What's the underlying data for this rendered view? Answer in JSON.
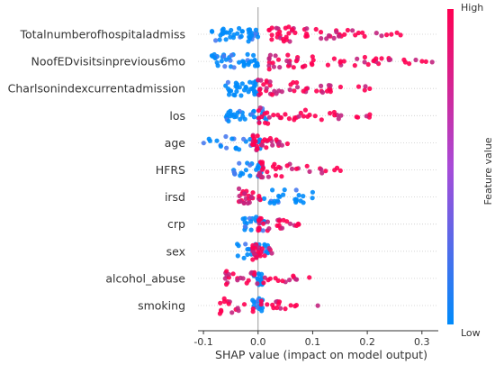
{
  "chart_data": {
    "type": "scatter",
    "subtype": "shap-beeswarm",
    "xlabel": "SHAP value (impact on model output)",
    "xlim": [
      -0.11,
      0.33
    ],
    "xticks": [
      -0.1,
      0.0,
      0.1,
      0.2,
      0.3
    ],
    "xtick_labels": [
      "-0.1",
      "0.0",
      "0.1",
      "0.2",
      "0.3"
    ],
    "zero_line": true,
    "colorbar": {
      "label": "Feature value",
      "high_label": "High",
      "low_label": "Low",
      "high_color": "#ff0052",
      "low_color": "#008bfb"
    },
    "features": [
      {
        "name": "Totalnumberofhospitaladmiss",
        "low": {
          "min": -0.085,
          "max": 0.0,
          "n": 40
        },
        "high": {
          "min": 0.02,
          "max": 0.265,
          "n": 55
        }
      },
      {
        "name": "NoofEDvisitsinprevious6mo",
        "low": {
          "min": -0.085,
          "max": 0.0,
          "n": 40
        },
        "high": {
          "min": 0.02,
          "max": 0.32,
          "n": 55
        }
      },
      {
        "name": "Charlsonindexcurrentadmission",
        "low": {
          "min": -0.06,
          "max": 0.0,
          "n": 34
        },
        "high": {
          "min": 0.0,
          "max": 0.23,
          "n": 45
        }
      },
      {
        "name": "los",
        "low": {
          "min": -0.06,
          "max": 0.02,
          "n": 30
        },
        "high": {
          "min": 0.0,
          "max": 0.215,
          "n": 38
        }
      },
      {
        "name": "age",
        "low": {
          "min": -0.1,
          "max": 0.01,
          "n": 25
        },
        "high": {
          "min": -0.01,
          "max": 0.06,
          "n": 34
        }
      },
      {
        "name": "HFRS",
        "low": {
          "min": -0.045,
          "max": 0.01,
          "n": 22
        },
        "high": {
          "min": 0.0,
          "max": 0.16,
          "n": 34
        }
      },
      {
        "name": "irsd",
        "low": {
          "min": 0.0,
          "max": 0.1,
          "n": 24
        },
        "high": {
          "min": -0.035,
          "max": 0.02,
          "n": 26
        }
      },
      {
        "name": "crp",
        "low": {
          "min": -0.03,
          "max": 0.015,
          "n": 22
        },
        "high": {
          "min": 0.0,
          "max": 0.075,
          "n": 28
        }
      },
      {
        "name": "sex",
        "low": {
          "min": -0.045,
          "max": 0.02,
          "n": 26
        },
        "high": {
          "min": -0.01,
          "max": 0.03,
          "n": 24
        }
      },
      {
        "name": "alcohol_abuse",
        "low": {
          "min": -0.01,
          "max": 0.01,
          "n": 18
        },
        "high": {
          "min": -0.06,
          "max": 0.1,
          "n": 34
        }
      },
      {
        "name": "smoking",
        "low": {
          "min": -0.01,
          "max": 0.01,
          "n": 18
        },
        "high": {
          "min": -0.07,
          "max": 0.11,
          "n": 32
        }
      }
    ]
  }
}
